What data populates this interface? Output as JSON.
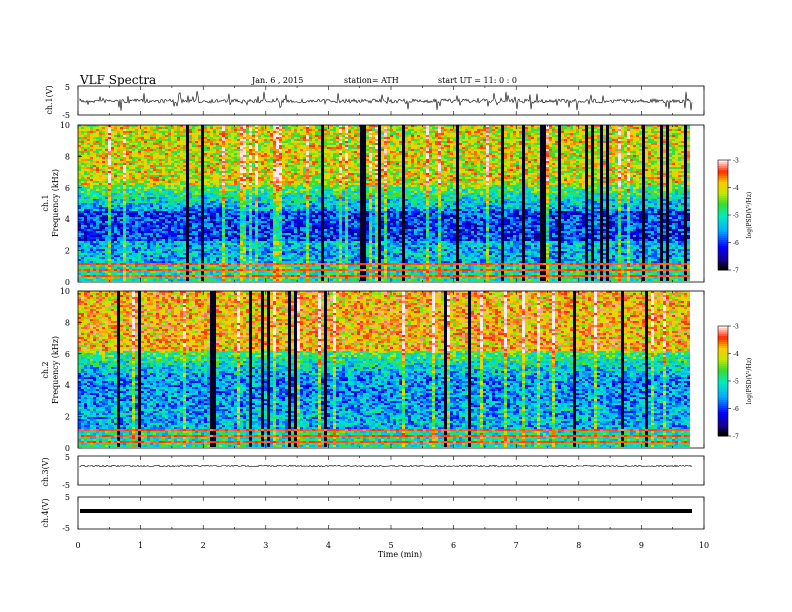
{
  "header": {
    "title": "VLF  Spectra",
    "date": "Jan. 6  , 2015",
    "station": "station= ATH",
    "start": "start  UT =    11: 0  : 0"
  },
  "chart_data": [
    {
      "type": "line",
      "ylabel": "ch.1(V)",
      "ylim": [
        -5,
        5
      ],
      "ytick_labels": [
        "5",
        "-5"
      ],
      "xlim": [
        0,
        10
      ]
    },
    {
      "type": "heatmap",
      "ylabel": "Frequency  (kHz)",
      "channel_label": "ch.1",
      "ylim": [
        0,
        10
      ],
      "ytick_labels": [
        "0",
        "2",
        "4",
        "6",
        "8",
        "10"
      ],
      "xlim": [
        0,
        10
      ],
      "colorbar": {
        "label": "log(PSD(V²/Hz)",
        "range": [
          -7,
          -3
        ],
        "tick_labels": [
          "-3",
          "-4",
          "-5",
          "-6",
          "-7"
        ]
      }
    },
    {
      "type": "heatmap",
      "ylabel": "Frequency  (kHz)",
      "channel_label": "ch.2",
      "ylim": [
        0,
        10
      ],
      "ytick_labels": [
        "0",
        "2",
        "4",
        "6",
        "8",
        "10"
      ],
      "xlim": [
        0,
        10
      ],
      "colorbar": {
        "label": "log(PSD(V²/Hz)",
        "range": [
          -7,
          -3
        ],
        "tick_labels": [
          "-3",
          "-4",
          "-5",
          "-6",
          "-7"
        ]
      }
    },
    {
      "type": "line",
      "ylabel": "ch.3(V)",
      "ylim": [
        -5,
        5
      ],
      "ytick_labels": [
        "5",
        "-5"
      ],
      "xlim": [
        0,
        10
      ]
    },
    {
      "type": "line",
      "ylabel": "ch.4(V)",
      "ylim": [
        -5,
        5
      ],
      "ytick_labels": [
        "5",
        "-5"
      ],
      "xlim": [
        0,
        10
      ]
    }
  ],
  "xaxis": {
    "label": "Time  (min)",
    "range": [
      0,
      10
    ],
    "tick_labels": [
      "0",
      "1",
      "2",
      "3",
      "4",
      "5",
      "6",
      "7",
      "8",
      "9",
      "10"
    ]
  },
  "colors": {
    "background": "#ffffff",
    "axis": "#000000",
    "trace": "#000000"
  }
}
